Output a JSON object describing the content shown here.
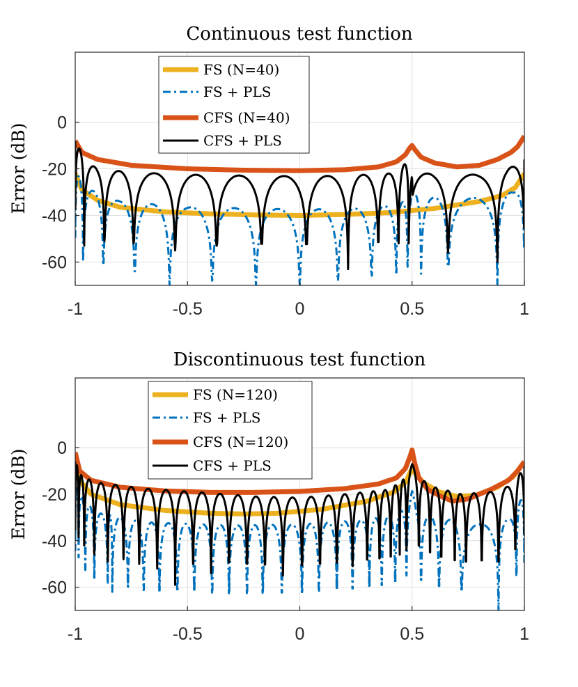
{
  "chart_data": [
    {
      "type": "line",
      "title": "Continuous test function",
      "xlabel": "",
      "ylabel": "Error (dB)",
      "xlim": [
        -1,
        1
      ],
      "ylim": [
        -70,
        30
      ],
      "xticks": [
        -1,
        -0.5,
        0,
        0.5,
        1
      ],
      "xtick_labels": [
        "-1",
        "-0.5",
        "0",
        "0.5",
        "1"
      ],
      "yticks": [
        0,
        -20,
        -40,
        -60
      ],
      "ytick_labels": [
        "0",
        "-20",
        "-40",
        "-60"
      ],
      "grid": true,
      "legend_position": "top-left",
      "series": [
        {
          "name": "FS (N=40)",
          "color": "#EDB120",
          "style": "solid-thick",
          "model": "smooth",
          "points": [
            [
              -1,
              -22
            ],
            [
              -0.97,
              -29
            ],
            [
              -0.9,
              -33.5
            ],
            [
              -0.8,
              -36.5
            ],
            [
              -0.6,
              -38.5
            ],
            [
              -0.4,
              -39.3
            ],
            [
              -0.2,
              -39.8
            ],
            [
              0,
              -40
            ],
            [
              0.2,
              -39.6
            ],
            [
              0.4,
              -38.8
            ],
            [
              0.6,
              -37
            ],
            [
              0.8,
              -34
            ],
            [
              0.9,
              -31.5
            ],
            [
              0.96,
              -28
            ],
            [
              1,
              -22
            ]
          ]
        },
        {
          "name": "FS + PLS",
          "color": "#0072BD",
          "style": "dash-dot",
          "model": "nulls",
          "envelope": [
            [
              -1,
              -20
            ],
            [
              -0.96,
              -28
            ],
            [
              -0.8,
              -34
            ],
            [
              -0.5,
              -36.5
            ],
            [
              -0.2,
              -37
            ],
            [
              0,
              -37.5
            ],
            [
              0.3,
              -37
            ],
            [
              0.45,
              -35
            ],
            [
              0.5,
              -30
            ],
            [
              0.55,
              -32
            ],
            [
              0.7,
              -33
            ],
            [
              0.85,
              -32
            ],
            [
              0.95,
              -30
            ],
            [
              1,
              -25
            ]
          ],
          "nulls": [
            [
              -0.965,
              -60
            ],
            [
              -0.875,
              -59
            ],
            [
              -0.735,
              -64
            ],
            [
              -0.58,
              -70
            ],
            [
              -0.39,
              -68
            ],
            [
              -0.195,
              -70
            ],
            [
              0,
              -70
            ],
            [
              0.17,
              -68
            ],
            [
              0.32,
              -65
            ],
            [
              0.43,
              -63
            ],
            [
              0.48,
              -62
            ],
            [
              0.54,
              -65
            ],
            [
              0.66,
              -62
            ],
            [
              0.88,
              -70
            ]
          ]
        },
        {
          "name": "CFS (N=40)",
          "color": "#D95319",
          "style": "solid-thick",
          "model": "smooth",
          "points": [
            [
              -1,
              -8
            ],
            [
              -0.97,
              -13
            ],
            [
              -0.9,
              -16
            ],
            [
              -0.75,
              -18.5
            ],
            [
              -0.5,
              -20
            ],
            [
              -0.25,
              -20.6
            ],
            [
              0,
              -20.8
            ],
            [
              0.2,
              -20.4
            ],
            [
              0.35,
              -19.2
            ],
            [
              0.43,
              -17
            ],
            [
              0.47,
              -14
            ],
            [
              0.49,
              -11
            ],
            [
              0.5,
              -10
            ],
            [
              0.51,
              -11.5
            ],
            [
              0.54,
              -15
            ],
            [
              0.6,
              -17.5
            ],
            [
              0.7,
              -19.2
            ],
            [
              0.8,
              -18.5
            ],
            [
              0.88,
              -16
            ],
            [
              0.94,
              -13
            ],
            [
              0.97,
              -10.5
            ],
            [
              1,
              -6
            ]
          ]
        },
        {
          "name": "CFS + PLS",
          "color": "#000000",
          "style": "solid",
          "model": "nulls",
          "envelope": [
            [
              -1,
              -8
            ],
            [
              -0.95,
              -17
            ],
            [
              -0.9,
              -20
            ],
            [
              -0.75,
              -21.5
            ],
            [
              -0.5,
              -22.5
            ],
            [
              -0.2,
              -23
            ],
            [
              0,
              -23.2
            ],
            [
              0.2,
              -23
            ],
            [
              0.4,
              -22
            ],
            [
              0.45,
              -21
            ],
            [
              0.5,
              -11
            ],
            [
              0.502,
              -21
            ],
            [
              0.6,
              -22.5
            ],
            [
              0.8,
              -22.5
            ],
            [
              0.92,
              -20.5
            ],
            [
              1,
              -16
            ]
          ],
          "nulls": [
            [
              -0.96,
              -53
            ],
            [
              -0.87,
              -51
            ],
            [
              -0.74,
              -52
            ],
            [
              -0.555,
              -55
            ],
            [
              -0.37,
              -53
            ],
            [
              -0.17,
              -51
            ],
            [
              0.03,
              -52
            ],
            [
              0.215,
              -63
            ],
            [
              0.35,
              -48
            ],
            [
              0.44,
              -52
            ],
            [
              0.485,
              -52
            ],
            [
              0.66,
              -56
            ],
            [
              0.88,
              -60
            ]
          ]
        }
      ]
    },
    {
      "type": "line",
      "title": "Discontinuous test function",
      "xlabel": "",
      "ylabel": "Error (dB)",
      "xlim": [
        -1,
        1
      ],
      "ylim": [
        -70,
        30
      ],
      "xticks": [
        -1,
        -0.5,
        0,
        0.5,
        1
      ],
      "xtick_labels": [
        "-1",
        "-0.5",
        "0",
        "0.5",
        "1"
      ],
      "yticks": [
        0,
        -20,
        -40,
        -60
      ],
      "ytick_labels": [
        "0",
        "-20",
        "-40",
        "-60"
      ],
      "grid": true,
      "legend_position": "top-left",
      "series": [
        {
          "name": "FS (N=120)",
          "color": "#EDB120",
          "style": "solid-thick",
          "model": "smooth",
          "points": [
            [
              -1,
              -6
            ],
            [
              -0.98,
              -14
            ],
            [
              -0.93,
              -20
            ],
            [
              -0.8,
              -24.5
            ],
            [
              -0.6,
              -27
            ],
            [
              -0.4,
              -28.2
            ],
            [
              -0.25,
              -28.5
            ],
            [
              -0.1,
              -28.2
            ],
            [
              0.1,
              -26.5
            ],
            [
              0.3,
              -23
            ],
            [
              0.42,
              -19
            ],
            [
              0.47,
              -15
            ],
            [
              0.49,
              -11
            ],
            [
              0.5,
              -9
            ],
            [
              0.51,
              -10.5
            ],
            [
              0.55,
              -15
            ],
            [
              0.62,
              -19
            ],
            [
              0.7,
              -21
            ],
            [
              0.78,
              -20.5
            ],
            [
              0.88,
              -17
            ],
            [
              0.95,
              -12.5
            ],
            [
              1,
              -6
            ]
          ]
        },
        {
          "name": "FS + PLS",
          "color": "#0072BD",
          "style": "dash-dot",
          "model": "nulls",
          "envelope": [
            [
              -1,
              -15
            ],
            [
              -0.96,
              -23
            ],
            [
              -0.9,
              -28
            ],
            [
              -0.7,
              -32
            ],
            [
              -0.3,
              -33.5
            ],
            [
              0,
              -33
            ],
            [
              0.3,
              -31
            ],
            [
              0.42,
              -29
            ],
            [
              0.47,
              -26
            ],
            [
              0.5,
              -18
            ],
            [
              0.52,
              -27
            ],
            [
              0.6,
              -30
            ],
            [
              0.8,
              -33
            ],
            [
              0.93,
              -31
            ],
            [
              1,
              -20
            ]
          ],
          "nulls": [
            [
              -0.985,
              -47
            ],
            [
              -0.955,
              -50
            ],
            [
              -0.915,
              -52
            ],
            [
              -0.855,
              -55
            ],
            [
              -0.835,
              -62
            ],
            [
              -0.765,
              -53
            ],
            [
              -0.695,
              -61
            ],
            [
              -0.625,
              -55
            ],
            [
              -0.545,
              -62
            ],
            [
              -0.47,
              -55
            ],
            [
              -0.39,
              -60
            ],
            [
              -0.315,
              -53
            ],
            [
              -0.235,
              -60
            ],
            [
              -0.165,
              -53
            ],
            [
              -0.08,
              -62
            ],
            [
              0.01,
              -53
            ],
            [
              0.085,
              -59
            ],
            [
              0.165,
              -53
            ],
            [
              0.235,
              -60
            ],
            [
              0.31,
              -52
            ],
            [
              0.365,
              -58
            ],
            [
              0.425,
              -53
            ],
            [
              0.475,
              -55
            ],
            [
              0.54,
              -53
            ],
            [
              0.62,
              -55
            ],
            [
              0.72,
              -55
            ],
            [
              0.885,
              -70
            ],
            [
              0.965,
              -53
            ]
          ]
        },
        {
          "name": "CFS (N=120)",
          "color": "#D95319",
          "style": "solid-thick",
          "model": "smooth",
          "points": [
            [
              -1,
              -2
            ],
            [
              -0.98,
              -10
            ],
            [
              -0.93,
              -14
            ],
            [
              -0.8,
              -17
            ],
            [
              -0.6,
              -18.6
            ],
            [
              -0.4,
              -19.2
            ],
            [
              -0.2,
              -19.2
            ],
            [
              0,
              -18.8
            ],
            [
              0.2,
              -17.6
            ],
            [
              0.35,
              -15.6
            ],
            [
              0.43,
              -13
            ],
            [
              0.47,
              -9
            ],
            [
              0.49,
              -4
            ],
            [
              0.5,
              -1
            ],
            [
              0.51,
              -6
            ],
            [
              0.53,
              -13
            ],
            [
              0.57,
              -18
            ],
            [
              0.63,
              -21
            ],
            [
              0.68,
              -23
            ],
            [
              0.75,
              -22
            ],
            [
              0.85,
              -18
            ],
            [
              0.93,
              -14
            ],
            [
              0.97,
              -10
            ],
            [
              1,
              -6
            ]
          ]
        },
        {
          "name": "CFS + PLS",
          "color": "#000000",
          "style": "solid",
          "model": "nulls",
          "envelope": [
            [
              -1,
              -6
            ],
            [
              -0.97,
              -12.5
            ],
            [
              -0.9,
              -15
            ],
            [
              -0.7,
              -17.5
            ],
            [
              -0.4,
              -19.5
            ],
            [
              -0.2,
              -21
            ],
            [
              0,
              -21.5
            ],
            [
              0.2,
              -20
            ],
            [
              0.4,
              -18
            ],
            [
              0.47,
              -13
            ],
            [
              0.5,
              -7
            ],
            [
              0.53,
              -13
            ],
            [
              0.6,
              -17
            ],
            [
              0.72,
              -20
            ],
            [
              0.85,
              -19
            ],
            [
              0.95,
              -16
            ],
            [
              1,
              -8
            ]
          ],
          "nulls": [
            [
              -0.985,
              -32
            ],
            [
              -0.96,
              -42
            ],
            [
              -0.915,
              -46
            ],
            [
              -0.855,
              -49
            ],
            [
              -0.785,
              -48
            ],
            [
              -0.715,
              -50
            ],
            [
              -0.635,
              -52
            ],
            [
              -0.555,
              -59
            ],
            [
              -0.475,
              -50
            ],
            [
              -0.395,
              -54
            ],
            [
              -0.315,
              -48
            ],
            [
              -0.235,
              -50
            ],
            [
              -0.155,
              -50
            ],
            [
              -0.075,
              -55
            ],
            [
              0.01,
              -45
            ],
            [
              0.09,
              -49
            ],
            [
              0.165,
              -46
            ],
            [
              0.235,
              -51
            ],
            [
              0.3,
              -47
            ],
            [
              0.355,
              -46
            ],
            [
              0.405,
              -45
            ],
            [
              0.445,
              -46
            ],
            [
              0.475,
              -44
            ],
            [
              0.53,
              -40
            ],
            [
              0.58,
              -42
            ],
            [
              0.63,
              -45
            ],
            [
              0.69,
              -44
            ],
            [
              0.74,
              -45
            ],
            [
              0.81,
              -46
            ],
            [
              0.885,
              -49
            ],
            [
              0.96,
              -40
            ]
          ]
        }
      ]
    }
  ]
}
